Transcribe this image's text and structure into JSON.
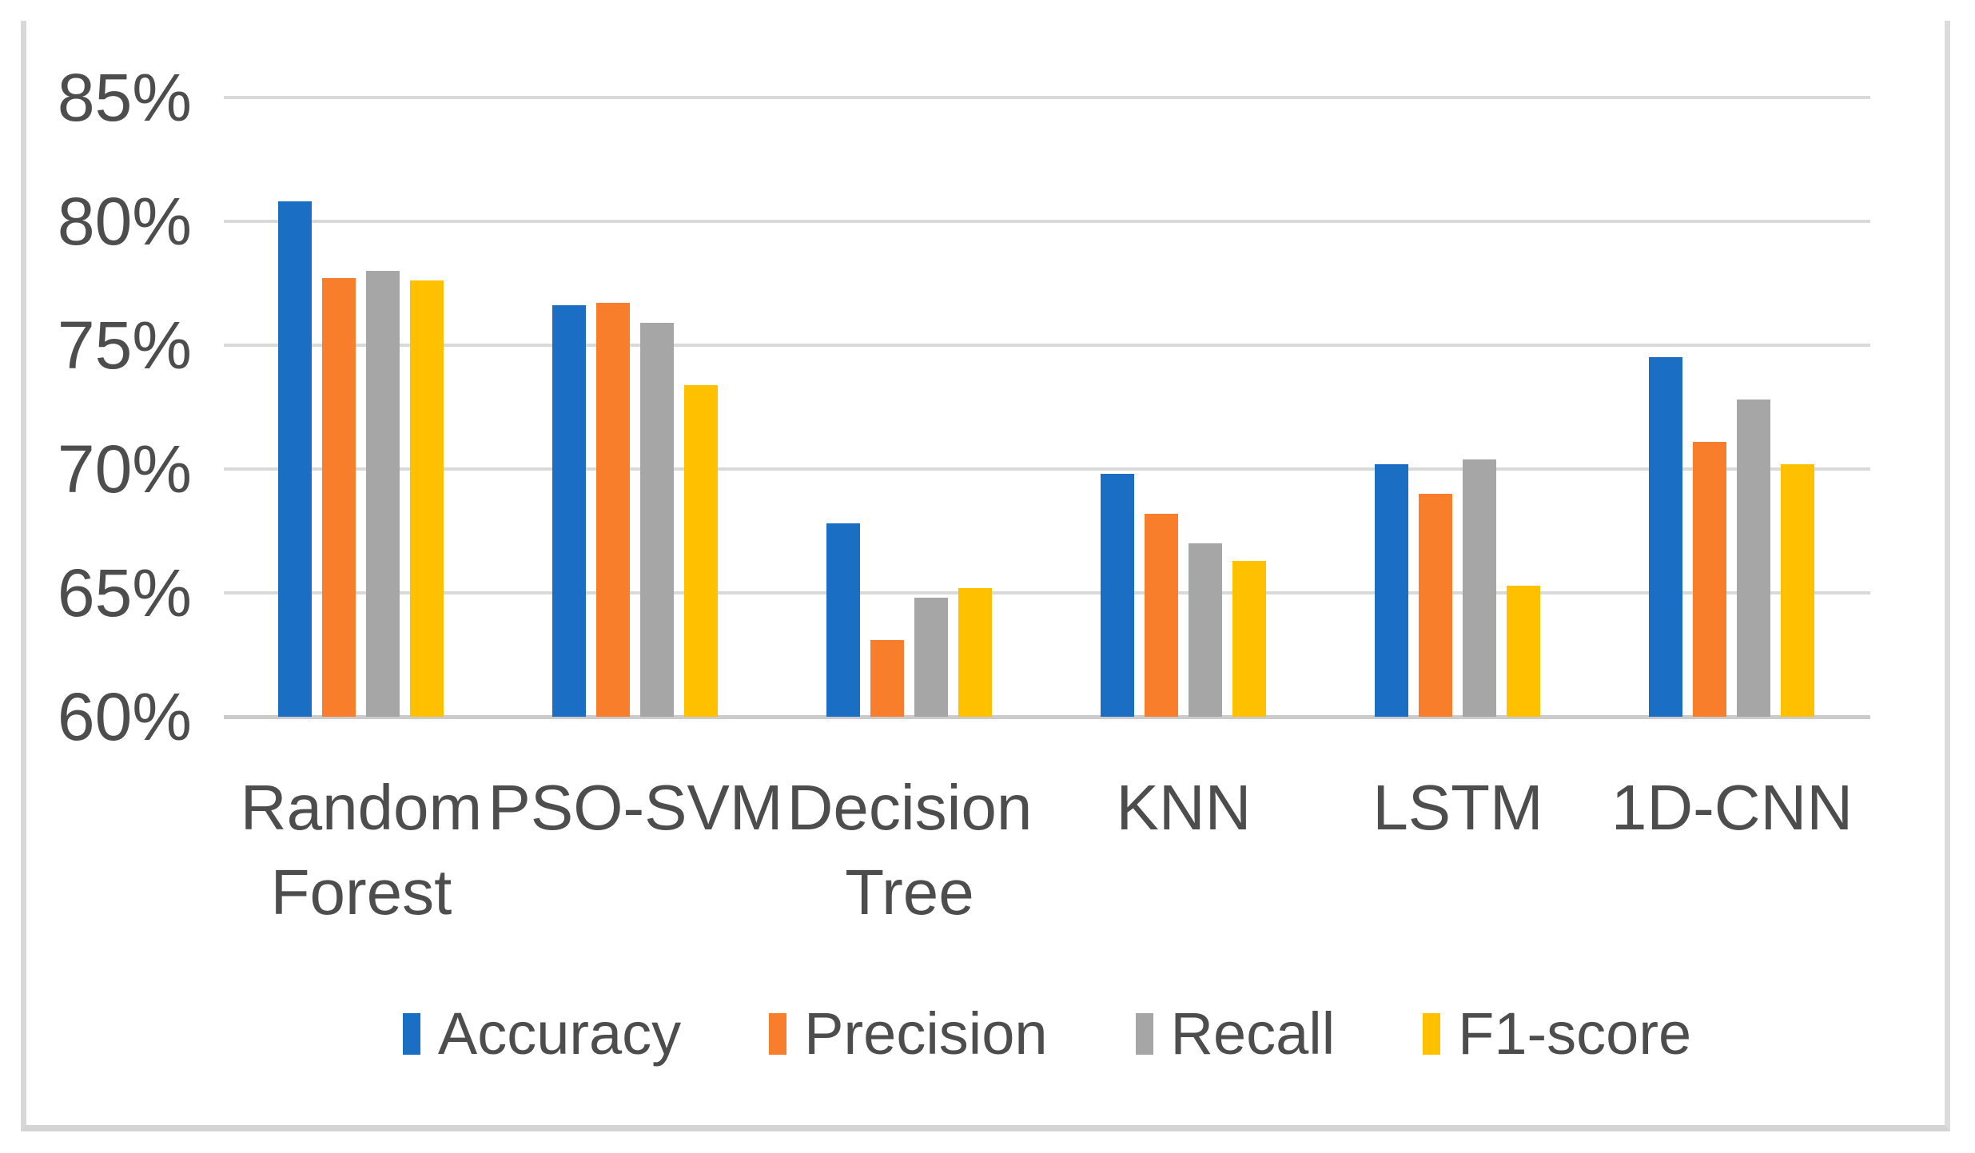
{
  "chart_data": {
    "type": "bar",
    "title": "",
    "categories": [
      "Random Forest",
      "PSO-SVM",
      "Decision Tree",
      "KNN",
      "LSTM",
      "1D-CNN"
    ],
    "series": [
      {
        "name": "Accuracy",
        "color": "#1a6fc5",
        "values": [
          80.8,
          76.6,
          67.8,
          69.8,
          70.2,
          74.5
        ]
      },
      {
        "name": "Precision",
        "color": "#f87e2c",
        "values": [
          77.7,
          76.7,
          63.1,
          68.2,
          69.0,
          71.1
        ]
      },
      {
        "name": "Recall",
        "color": "#a6a6a6",
        "values": [
          78.0,
          75.9,
          64.8,
          67.0,
          70.4,
          72.8
        ]
      },
      {
        "name": "F1-score",
        "color": "#ffc000",
        "values": [
          77.6,
          73.4,
          65.2,
          66.3,
          65.3,
          70.2
        ]
      }
    ],
    "y_axis": {
      "min": 60,
      "max": 85,
      "unit": "%",
      "tick_values": [
        85,
        80,
        75,
        70,
        65,
        60
      ],
      "tick_labels": [
        "85%",
        "80%",
        "75%",
        "70%",
        "65%",
        "60%"
      ]
    },
    "grid": true,
    "legend_position": "bottom"
  },
  "style_colors": {
    "gridline": "#d9d9d9",
    "axis_line": "#cbcbcb",
    "text": "#4d4d4d",
    "frame_border": "#d8d8d8",
    "background": "#ffffff"
  }
}
